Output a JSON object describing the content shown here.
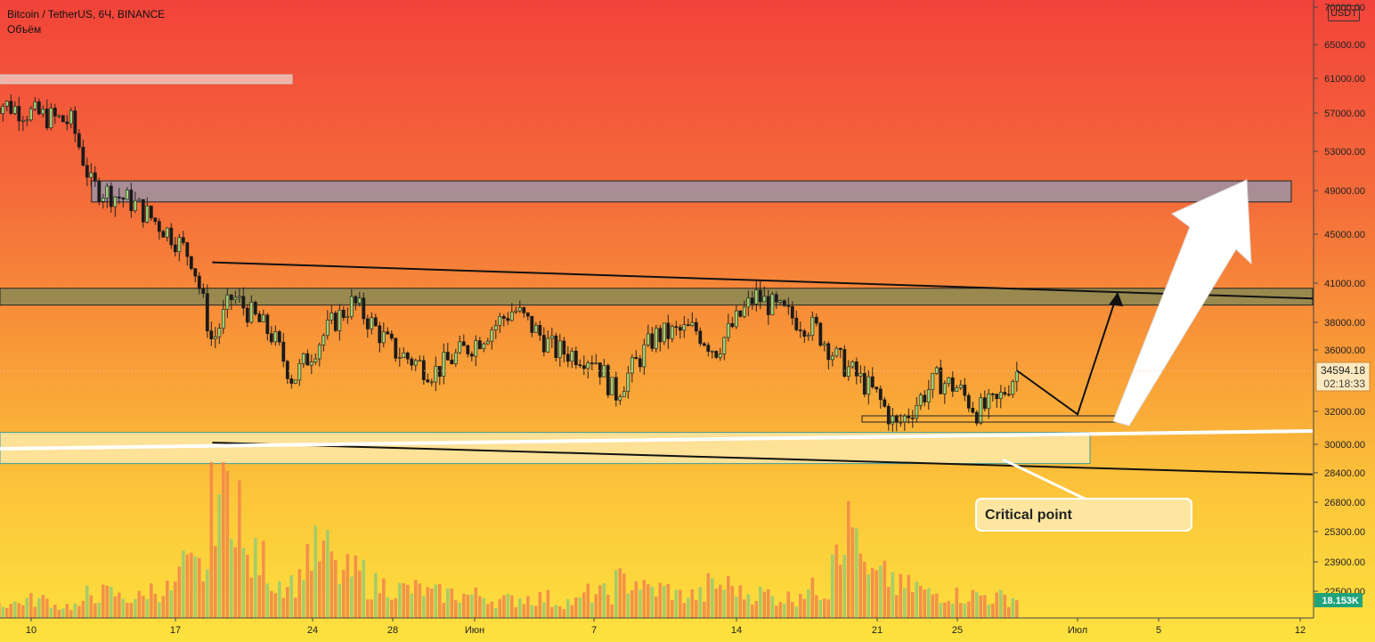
{
  "header": {
    "symbol_line": "Bitcoin / TetherUS, 6Ч, BINANCE",
    "volume_label": "Объём"
  },
  "price_axis": {
    "currency_badge": "USDT",
    "ticks": [
      "70000.00",
      "65000.00",
      "61000.00",
      "57000.00",
      "53000.00",
      "49000.00",
      "45000.00",
      "41000.00",
      "38000.00",
      "36000.00",
      "32000.00",
      "30000.00",
      "28400.00",
      "26800.00",
      "25300.00",
      "23900.00",
      "22500.00"
    ],
    "current_price": "34594.18",
    "countdown": "02:18:33",
    "volume_value": "18.153K"
  },
  "time_axis": {
    "labels": [
      "10",
      "17",
      "24",
      "28",
      "Июн",
      "7",
      "14",
      "21",
      "25",
      "Июл",
      "5",
      "12"
    ]
  },
  "annotations": {
    "critical_point": "Critical point"
  },
  "colors": {
    "up": "#9bd076",
    "down": "#e0472f",
    "volume_up": "#9bcb6e",
    "volume_down": "#f2894a",
    "zone_grey": "#9b93a6",
    "zone_olive": "#8f8a52"
  },
  "chart_data": {
    "type": "candlestick",
    "title": "Bitcoin / TetherUS, 6Ч, BINANCE",
    "interval": "6Ч",
    "x_range": [
      "2021-05-08",
      "2021-07-13"
    ],
    "y_scale": "log",
    "ylim": [
      21500,
      70000
    ],
    "last_price": 34594.18,
    "last_volume": "18.153K",
    "zones": [
      {
        "name": "resistance-top",
        "from": "2021-05-13",
        "to": "2021-07-11",
        "low": 48000,
        "high": 50000
      },
      {
        "name": "resistance-mid",
        "from": "2021-05-08",
        "to": "2021-07-13",
        "low": 39300,
        "high": 40600
      },
      {
        "name": "support-box",
        "from": "2021-05-08",
        "to": "2021-07-01",
        "low": 28900,
        "high": 30700
      }
    ],
    "trend_lines": [
      {
        "from": [
          "2021-05-19",
          42700
        ],
        "to": [
          "2021-07-13",
          39800
        ]
      },
      {
        "from": [
          "2021-05-19",
          30100
        ],
        "to": [
          "2021-07-13",
          28300
        ]
      }
    ],
    "series": [
      {
        "name": "BTCUSDT",
        "points": [
          [
            "2021-05-08",
            58500
          ],
          [
            "2021-05-10",
            57000
          ],
          [
            "2021-05-12",
            56000
          ],
          [
            "2021-05-13",
            49500
          ],
          [
            "2021-05-15",
            48000
          ],
          [
            "2021-05-17",
            45000
          ],
          [
            "2021-05-18",
            43000
          ],
          [
            "2021-05-19",
            36500
          ],
          [
            "2021-05-20",
            40000
          ],
          [
            "2021-05-22",
            37000
          ],
          [
            "2021-05-23",
            34000
          ],
          [
            "2021-05-25",
            38000
          ],
          [
            "2021-05-26",
            39500
          ],
          [
            "2021-05-28",
            36000
          ],
          [
            "2021-05-30",
            34500
          ],
          [
            "2021-06-01",
            36500
          ],
          [
            "2021-06-03",
            39000
          ],
          [
            "2021-06-05",
            36000
          ],
          [
            "2021-06-07",
            35500
          ],
          [
            "2021-06-08",
            33000
          ],
          [
            "2021-06-10",
            37000
          ],
          [
            "2021-06-12",
            37500
          ],
          [
            "2021-06-13",
            36000
          ],
          [
            "2021-06-15",
            40000
          ],
          [
            "2021-06-16",
            39000
          ],
          [
            "2021-06-18",
            37500
          ],
          [
            "2021-06-19",
            35500
          ],
          [
            "2021-06-21",
            33000
          ],
          [
            "2021-06-22",
            31000
          ],
          [
            "2021-06-24",
            34000
          ],
          [
            "2021-06-25",
            33500
          ],
          [
            "2021-06-26",
            32000
          ],
          [
            "2021-06-27",
            32500
          ],
          [
            "2021-06-28",
            34600
          ]
        ]
      },
      {
        "name": "Объём",
        "values": [
          18,
          22,
          15,
          30,
          25,
          35,
          60,
          160,
          70,
          45,
          80,
          55,
          40,
          35,
          30,
          28,
          22,
          25,
          20,
          30,
          45,
          35,
          28,
          40,
          30,
          25,
          35,
          110,
          50,
          38,
          30,
          28,
          25,
          18.153
        ]
      }
    ],
    "projection": [
      [
        "2021-06-28",
        34600
      ],
      [
        "2021-07-01",
        31800
      ],
      [
        "2021-07-03",
        40300
      ]
    ]
  }
}
